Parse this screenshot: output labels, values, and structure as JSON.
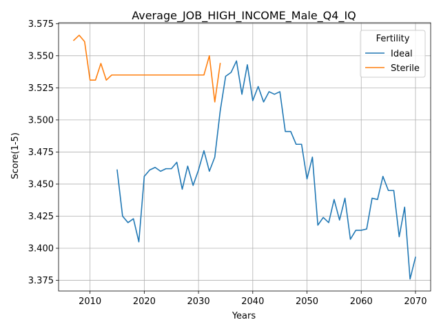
{
  "chart_data": {
    "type": "line",
    "title": "Average_JOB_HIGH_INCOME_Male_Q4_IQ",
    "xlabel": "Years",
    "ylabel": "Score(1-5)",
    "xlim": [
      2004.2,
      2072.8
    ],
    "ylim": [
      3.3667,
      3.5757
    ],
    "xticks": [
      2010,
      2020,
      2030,
      2040,
      2050,
      2060,
      2070
    ],
    "yticks": [
      3.375,
      3.4,
      3.425,
      3.45,
      3.475,
      3.5,
      3.525,
      3.55,
      3.575
    ],
    "ytick_labels": [
      "3.375",
      "3.400",
      "3.425",
      "3.450",
      "3.475",
      "3.500",
      "3.525",
      "3.550",
      "3.575"
    ],
    "grid": true,
    "legend": {
      "title": "Fertility",
      "placement": "top-right"
    },
    "series": [
      {
        "name": "Ideal",
        "color": "#1f77b4",
        "x": [
          2015,
          2016,
          2017,
          2018,
          2019,
          2020,
          2021,
          2022,
          2023,
          2024,
          2025,
          2026,
          2027,
          2028,
          2029,
          2030,
          2031,
          2032,
          2033,
          2034,
          2035,
          2036,
          2037,
          2038,
          2039,
          2040,
          2041,
          2042,
          2043,
          2044,
          2045,
          2046,
          2047,
          2048,
          2049,
          2050,
          2051,
          2052,
          2053,
          2054,
          2055,
          2056,
          2057,
          2058,
          2059,
          2060,
          2061,
          2062,
          2063,
          2064,
          2065,
          2066,
          2067,
          2068,
          2069,
          2070
        ],
        "y": [
          3.461,
          3.425,
          3.42,
          3.423,
          3.405,
          3.456,
          3.461,
          3.463,
          3.46,
          3.462,
          3.462,
          3.467,
          3.446,
          3.464,
          3.449,
          3.461,
          3.476,
          3.46,
          3.471,
          3.507,
          3.534,
          3.537,
          3.546,
          3.52,
          3.543,
          3.515,
          3.526,
          3.514,
          3.522,
          3.52,
          3.522,
          3.491,
          3.491,
          3.481,
          3.481,
          3.454,
          3.471,
          3.418,
          3.424,
          3.42,
          3.438,
          3.422,
          3.439,
          3.407,
          3.414,
          3.414,
          3.415,
          3.439,
          3.438,
          3.456,
          3.445,
          3.445,
          3.409,
          3.432,
          3.376,
          3.393
        ]
      },
      {
        "name": "Sterile",
        "color": "#ff7f0e",
        "x": [
          2007,
          2008,
          2009,
          2010,
          2011,
          2012,
          2013,
          2014,
          2015,
          2016,
          2017,
          2018,
          2019,
          2020,
          2021,
          2022,
          2023,
          2024,
          2025,
          2026,
          2027,
          2028,
          2029,
          2030,
          2031,
          2032,
          2033,
          2034
        ],
        "y": [
          3.562,
          3.566,
          3.561,
          3.531,
          3.531,
          3.544,
          3.531,
          3.535,
          3.535,
          3.535,
          3.535,
          3.535,
          3.535,
          3.535,
          3.535,
          3.535,
          3.535,
          3.535,
          3.535,
          3.535,
          3.535,
          3.535,
          3.535,
          3.535,
          3.535,
          3.55,
          3.514,
          3.544
        ]
      }
    ]
  }
}
